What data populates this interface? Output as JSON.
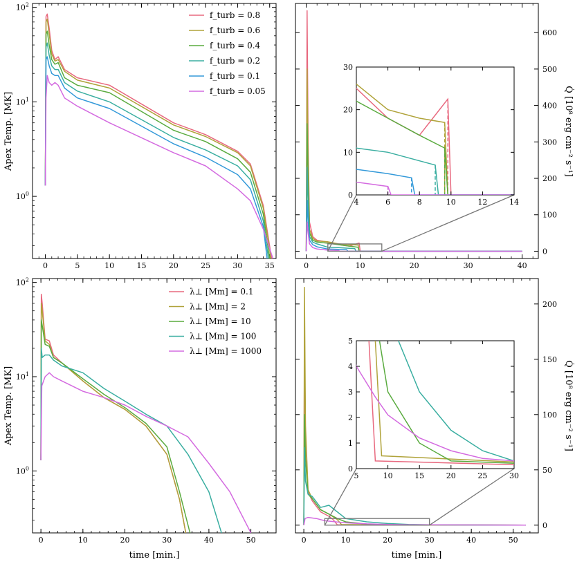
{
  "chart_data": [
    {
      "panel": "top-left",
      "type": "line",
      "xlabel": "",
      "ylabel": "Apex Temp. [MK]",
      "xlim": [
        -2,
        36
      ],
      "ylim_log": [
        0.22,
        110
      ],
      "yscale": "log",
      "xticks": [
        "0",
        "5",
        "10",
        "15",
        "20",
        "25",
        "30",
        "35"
      ],
      "yticks": [
        "10^0",
        "10^1",
        "10^2"
      ],
      "legend": "top-right",
      "series": [
        {
          "name": "f_turb = 0.8",
          "color": "#e8697f",
          "x": [
            0,
            0.1,
            0.3,
            0.6,
            1,
            1.5,
            2,
            3,
            5,
            10,
            20,
            25,
            30,
            32,
            34,
            35.3
          ],
          "y": [
            1.3,
            80,
            85,
            60,
            35,
            28,
            30,
            22,
            18,
            15,
            6,
            4.5,
            3,
            2.2,
            0.8,
            0.22
          ]
        },
        {
          "name": "f_turb = 0.6",
          "color": "#b0a33a",
          "x": [
            0,
            0.1,
            0.3,
            0.6,
            1,
            1.5,
            2,
            3,
            5,
            10,
            20,
            25,
            30,
            32,
            34,
            35.2
          ],
          "y": [
            1.3,
            70,
            75,
            52,
            32,
            27,
            28,
            21,
            17,
            14,
            5.7,
            4.3,
            2.9,
            2.1,
            0.75,
            0.22
          ]
        },
        {
          "name": "f_turb = 0.4",
          "color": "#5aab3f",
          "x": [
            0,
            0.1,
            0.3,
            0.6,
            1,
            1.5,
            2,
            3,
            5,
            10,
            20,
            25,
            30,
            32,
            34,
            35
          ],
          "y": [
            1.3,
            52,
            56,
            40,
            28,
            25,
            26,
            18,
            15,
            12.5,
            5,
            3.8,
            2.5,
            1.8,
            0.65,
            0.22
          ]
        },
        {
          "name": "f_turb = 0.2",
          "color": "#3aaea1",
          "x": [
            0,
            0.1,
            0.3,
            0.6,
            1,
            1.5,
            2,
            3,
            5,
            10,
            20,
            25,
            30,
            32,
            34,
            34.8
          ],
          "y": [
            1.3,
            38,
            42,
            31,
            24,
            22,
            22,
            16,
            13,
            10,
            4.2,
            3.1,
            2.1,
            1.5,
            0.55,
            0.22
          ]
        },
        {
          "name": "f_turb = 0.1",
          "color": "#3399d9",
          "x": [
            0,
            0.1,
            0.3,
            0.6,
            1,
            1.5,
            2,
            3,
            5,
            10,
            20,
            25,
            30,
            32,
            34,
            34.6
          ],
          "y": [
            1.3,
            28,
            30,
            24,
            20,
            19,
            19,
            14,
            11,
            8.5,
            3.6,
            2.6,
            1.7,
            1.2,
            0.48,
            0.22
          ]
        },
        {
          "name": "f_turb = 0.05",
          "color": "#d46be0",
          "x": [
            0,
            0.1,
            0.3,
            0.6,
            1,
            1.5,
            2,
            3,
            5,
            10,
            20,
            25,
            30,
            32,
            34,
            35.5
          ],
          "y": [
            1.3,
            11,
            19,
            16,
            15,
            16,
            15,
            11,
            9,
            6,
            2.9,
            2.1,
            1.2,
            0.9,
            0.45,
            0.22
          ]
        }
      ]
    },
    {
      "panel": "top-right",
      "type": "line",
      "xlabel": "",
      "ylabel": "Q̇ [10^8 erg cm^-2 s^-1]",
      "xlim": [
        -2,
        43
      ],
      "ylim": [
        -20,
        680
      ],
      "xticks": [
        "0",
        "10",
        "20",
        "30",
        "40"
      ],
      "yticks": [
        "0",
        "100",
        "200",
        "300",
        "400",
        "500",
        "600"
      ],
      "series": [
        {
          "name": "f_turb = 0.8",
          "color": "#e8697f",
          "x": [
            0,
            0.15,
            0.35,
            0.6,
            1.2,
            2,
            4,
            6,
            8,
            9.8,
            10,
            40
          ],
          "y": [
            0,
            660,
            300,
            80,
            40,
            30,
            25,
            18,
            14,
            22.5,
            0,
            0
          ]
        },
        {
          "name": "f_turb = 0.6",
          "color": "#b0a33a",
          "x": [
            0,
            0.15,
            0.35,
            0.6,
            1.2,
            2,
            4,
            6,
            8,
            9.6,
            9.8,
            40
          ],
          "y": [
            0,
            500,
            250,
            60,
            35,
            28,
            26,
            20,
            18,
            17,
            0,
            0
          ]
        },
        {
          "name": "f_turb = 0.4",
          "color": "#5aab3f",
          "x": [
            0,
            0.15,
            0.35,
            0.6,
            1.2,
            2,
            4,
            6,
            8,
            9.6,
            9.8,
            40
          ],
          "y": [
            0,
            350,
            200,
            50,
            30,
            25,
            22,
            18,
            14,
            11,
            0,
            0
          ]
        },
        {
          "name": "f_turb = 0.2",
          "color": "#3aaea1",
          "x": [
            0,
            0.15,
            0.35,
            0.6,
            1.2,
            2,
            4,
            6,
            8,
            9,
            9.2,
            40
          ],
          "y": [
            0,
            230,
            130,
            40,
            25,
            20,
            11,
            10,
            8,
            7,
            0,
            0
          ]
        },
        {
          "name": "f_turb = 0.1",
          "color": "#3399d9",
          "x": [
            0,
            0.15,
            0.35,
            0.6,
            1.2,
            2,
            4,
            6,
            7.5,
            7.7,
            40
          ],
          "y": [
            0,
            140,
            80,
            30,
            18,
            12,
            6,
            5,
            4,
            0,
            0
          ]
        },
        {
          "name": "f_turb = 0.05",
          "color": "#d46be0",
          "x": [
            0,
            0.15,
            0.35,
            0.6,
            1.2,
            2,
            4,
            6,
            6.2,
            40
          ],
          "y": [
            0,
            80,
            50,
            20,
            10,
            6,
            3,
            2,
            0,
            0
          ]
        }
      ],
      "inset": {
        "xlim": [
          4,
          14
        ],
        "ylim": [
          0,
          30
        ],
        "xticks": [
          "4",
          "6",
          "8",
          "10",
          "12",
          "14"
        ],
        "yticks": [
          "0",
          "10",
          "20",
          "30"
        ],
        "zoom_box_x": [
          4,
          14
        ],
        "zoom_box_y": [
          0,
          20
        ]
      }
    },
    {
      "panel": "bottom-left",
      "type": "line",
      "xlabel": "time [min.]",
      "ylabel": "Apex Temp. [MK]",
      "xlim": [
        -2,
        56
      ],
      "ylim_log": [
        0.22,
        110
      ],
      "yscale": "log",
      "xticks": [
        "0",
        "10",
        "20",
        "30",
        "40",
        "50"
      ],
      "yticks": [
        "10^0",
        "10^1",
        "10^2"
      ],
      "legend": "top-right",
      "series": [
        {
          "name": "λ⊥ [Mm] = 0.1",
          "color": "#e8697f",
          "x": [
            0,
            0.1,
            0.3,
            1,
            2,
            3,
            5,
            10,
            15,
            20,
            25,
            30,
            33,
            34.5
          ],
          "y": [
            1.3,
            75,
            60,
            25,
            24,
            17,
            14,
            9,
            6,
            4.5,
            3,
            1.5,
            0.5,
            0.22
          ]
        },
        {
          "name": "λ⊥ [Mm] = 2",
          "color": "#b0a33a",
          "x": [
            0,
            0.1,
            0.3,
            1,
            2,
            3,
            5,
            10,
            15,
            20,
            25,
            30,
            33,
            34.5
          ],
          "y": [
            1.3,
            60,
            50,
            24,
            22,
            16,
            14,
            9,
            6,
            4.5,
            3,
            1.5,
            0.5,
            0.22
          ]
        },
        {
          "name": "λ⊥ [Mm] = 10",
          "color": "#5aab3f",
          "x": [
            0,
            0.1,
            0.3,
            1,
            2,
            3,
            5,
            10,
            15,
            20,
            25,
            30,
            33,
            35.5
          ],
          "y": [
            1.3,
            40,
            35,
            22,
            21,
            16,
            14,
            9.5,
            6.5,
            4.7,
            3.2,
            1.8,
            0.6,
            0.22
          ]
        },
        {
          "name": "λ⊥ [Mm] = 100",
          "color": "#3aaea1",
          "x": [
            0,
            0.1,
            0.3,
            1,
            2,
            3,
            5,
            10,
            15,
            20,
            25,
            30,
            35,
            40,
            43
          ],
          "y": [
            1.3,
            20,
            16,
            17,
            17,
            15,
            13,
            11,
            7.5,
            5.5,
            4,
            3,
            1.5,
            0.6,
            0.22
          ]
        },
        {
          "name": "λ⊥ [Mm] = 1000",
          "color": "#d46be0",
          "x": [
            0,
            0.2,
            1,
            2,
            3,
            5,
            10,
            15,
            20,
            25,
            30,
            35,
            40,
            45,
            50
          ],
          "y": [
            1.3,
            8,
            10,
            11,
            10,
            9,
            7,
            6,
            5,
            3.8,
            3,
            2.3,
            1.2,
            0.6,
            0.22
          ]
        }
      ]
    },
    {
      "panel": "bottom-right",
      "type": "line",
      "xlabel": "time [min.]",
      "ylabel": "Q̇ [10^8 erg cm^-2 s^-1]",
      "xlim": [
        -2,
        56
      ],
      "ylim": [
        -7,
        223
      ],
      "xticks": [
        "0",
        "10",
        "20",
        "30",
        "40",
        "50"
      ],
      "yticks": [
        "0",
        "50",
        "100",
        "150",
        "200"
      ],
      "series": [
        {
          "name": "λ⊥ [Mm] = 0.1",
          "color": "#e8697f",
          "x": [
            0,
            0.15,
            0.4,
            1,
            2,
            4,
            6,
            7,
            8,
            53
          ],
          "y": [
            0,
            170,
            80,
            30,
            22,
            12,
            8,
            5,
            0.3,
            0
          ]
        },
        {
          "name": "λ⊥ [Mm] = 2",
          "color": "#b0a33a",
          "x": [
            0,
            0.15,
            0.4,
            1,
            2,
            4,
            6,
            8,
            9,
            53
          ],
          "y": [
            0,
            215,
            90,
            32,
            24,
            14,
            10,
            5,
            0.5,
            0
          ]
        },
        {
          "name": "λ⊥ [Mm] = 10",
          "color": "#5aab3f",
          "x": [
            0,
            0.15,
            0.4,
            1,
            2,
            4,
            6,
            8,
            10,
            15,
            20,
            53
          ],
          "y": [
            0,
            100,
            60,
            28,
            24,
            14,
            10,
            6,
            3,
            1,
            0.3,
            0
          ]
        },
        {
          "name": "λ⊥ [Mm] = 100",
          "color": "#3aaea1",
          "x": [
            0,
            0.15,
            0.4,
            1,
            2,
            4,
            6,
            8,
            10,
            15,
            20,
            25,
            30,
            53
          ],
          "y": [
            0,
            70,
            40,
            28,
            26,
            16,
            18,
            12,
            6,
            3,
            1.5,
            0.7,
            0.3,
            0
          ]
        },
        {
          "name": "λ⊥ [Mm] = 1000",
          "color": "#d46be0",
          "x": [
            0,
            0.3,
            1,
            3,
            5,
            8,
            10,
            15,
            20,
            25,
            30,
            53
          ],
          "y": [
            0,
            6,
            7,
            6,
            4,
            2.8,
            2.1,
            1.2,
            0.7,
            0.4,
            0.3,
            0
          ]
        }
      ],
      "inset": {
        "xlim": [
          5,
          30
        ],
        "ylim": [
          0,
          5
        ],
        "xticks": [
          "5",
          "10",
          "15",
          "20",
          "25",
          "30"
        ],
        "yticks": [
          "0",
          "1",
          "2",
          "3",
          "4",
          "5"
        ],
        "zoom_box_x": [
          5,
          30
        ],
        "zoom_box_y": [
          0,
          6
        ]
      }
    }
  ],
  "legends": {
    "top": [
      "f_turb = 0.8",
      "f_turb = 0.6",
      "f_turb = 0.4",
      "f_turb = 0.2",
      "f_turb = 0.1",
      "f_turb = 0.05"
    ],
    "bottom": [
      "λ⊥ [Mm] = 0.1",
      "λ⊥ [Mm] = 2",
      "λ⊥ [Mm] = 10",
      "λ⊥ [Mm] = 100",
      "λ⊥ [Mm] = 1000"
    ]
  },
  "labels": {
    "ylabel_temp": "Apex Temp. [MK]",
    "ylabel_q": "Q̇ [10⁸ erg cm⁻² s⁻¹]",
    "xlabel": "time [min.]"
  }
}
